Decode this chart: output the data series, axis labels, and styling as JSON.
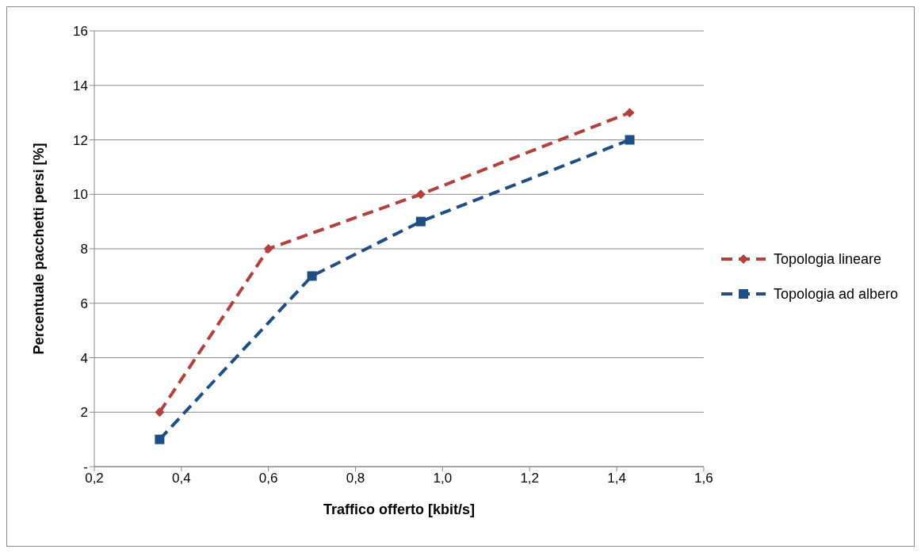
{
  "chart_data": {
    "type": "line",
    "xlabel": "Traffico offerto [kbit/s]",
    "ylabel": "Percentuale pacchetti persi [%]",
    "series": [
      {
        "name": "Topologia lineare",
        "color": "#b3403c",
        "x": [
          0.35,
          0.6,
          0.95,
          1.43
        ],
        "values": [
          2,
          8,
          10,
          13
        ],
        "marker": "diamond"
      },
      {
        "name": "Topologia ad albero",
        "color": "#1f4e85",
        "x": [
          0.35,
          0.7,
          0.95,
          1.43
        ],
        "values": [
          1,
          7,
          9,
          12
        ],
        "marker": "square"
      }
    ],
    "xlim": [
      0.2,
      1.6
    ],
    "xticks": [
      {
        "value": 0.2,
        "label": "0,2"
      },
      {
        "value": 0.4,
        "label": "0,4"
      },
      {
        "value": 0.6,
        "label": "0,6"
      },
      {
        "value": 0.8,
        "label": "0,8"
      },
      {
        "value": 1.0,
        "label": "1,0"
      },
      {
        "value": 1.2,
        "label": "1,2"
      },
      {
        "value": 1.4,
        "label": "1,4"
      },
      {
        "value": 1.6,
        "label": "1,6"
      }
    ],
    "ylim": [
      0,
      16
    ],
    "yticks": [
      {
        "value": 0,
        "label": "-"
      },
      2,
      4,
      6,
      8,
      10,
      12,
      14,
      16
    ],
    "grid": "y",
    "legend": "right",
    "line_style": "dashed"
  }
}
